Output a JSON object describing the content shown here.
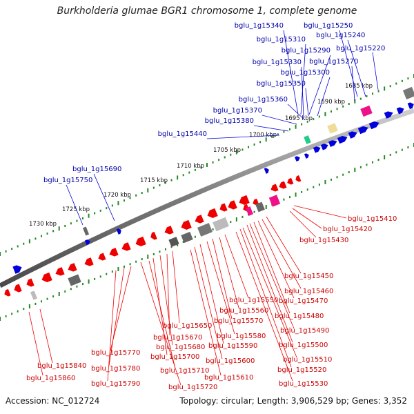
{
  "title": "Burkholderia glumae BGR1 chromosome 1, complete genome",
  "accession": "Accession: NC_012724",
  "topology": "Topology: circular; Length: 3,906,529 bp; Genes: 3,352",
  "colors": {
    "forward": "#0000dd",
    "reverse": "#ee0000",
    "label_forward": "#0000aa",
    "label_reverse": "#cc0000",
    "axis": "#777777",
    "ticks": "#228822"
  },
  "kbp_labels": [
    "1685 kbp",
    "1690 kbp",
    "1695 kbp",
    "1700 kbp",
    "1705 kbp",
    "1710 kbp",
    "1715 kbp",
    "1720 kbp",
    "1725 kbp",
    "1730 kbp"
  ],
  "forward_genes": [
    "bglu_1g15340",
    "bglu_1g15310",
    "bglu_1g15290",
    "bglu_1g15330",
    "bglu_1g15300",
    "bglu_1g15350",
    "bglu_1g15360",
    "bglu_1g15370",
    "bglu_1g15380",
    "bglu_1g15440",
    "bglu_1g15250",
    "bglu_1g15240",
    "bglu_1g15220",
    "bglu_1g15270",
    "bglu_1g15690",
    "bglu_1g15750"
  ],
  "reverse_genes": [
    "bglu_1g15410",
    "bglu_1g15420",
    "bglu_1g15430",
    "bglu_1g15450",
    "bglu_1g15460",
    "bglu_1g15470",
    "bglu_1g15480",
    "bglu_1g15490",
    "bglu_1g15500",
    "bglu_1g15510",
    "bglu_1g15520",
    "bglu_1g15530",
    "bglu_1g15550",
    "bglu_1g15560",
    "bglu_1g15570",
    "bglu_1g15580",
    "bglu_1g15590",
    "bglu_1g15600",
    "bglu_1g15610",
    "bglu_1g15650",
    "bglu_1g15670",
    "bglu_1g15680",
    "bglu_1g15700",
    "bglu_1g15710",
    "bglu_1g15720",
    "bglu_1g15770",
    "bglu_1g15780",
    "bglu_1g15790",
    "bglu_1g15840",
    "bglu_1g15860"
  ]
}
